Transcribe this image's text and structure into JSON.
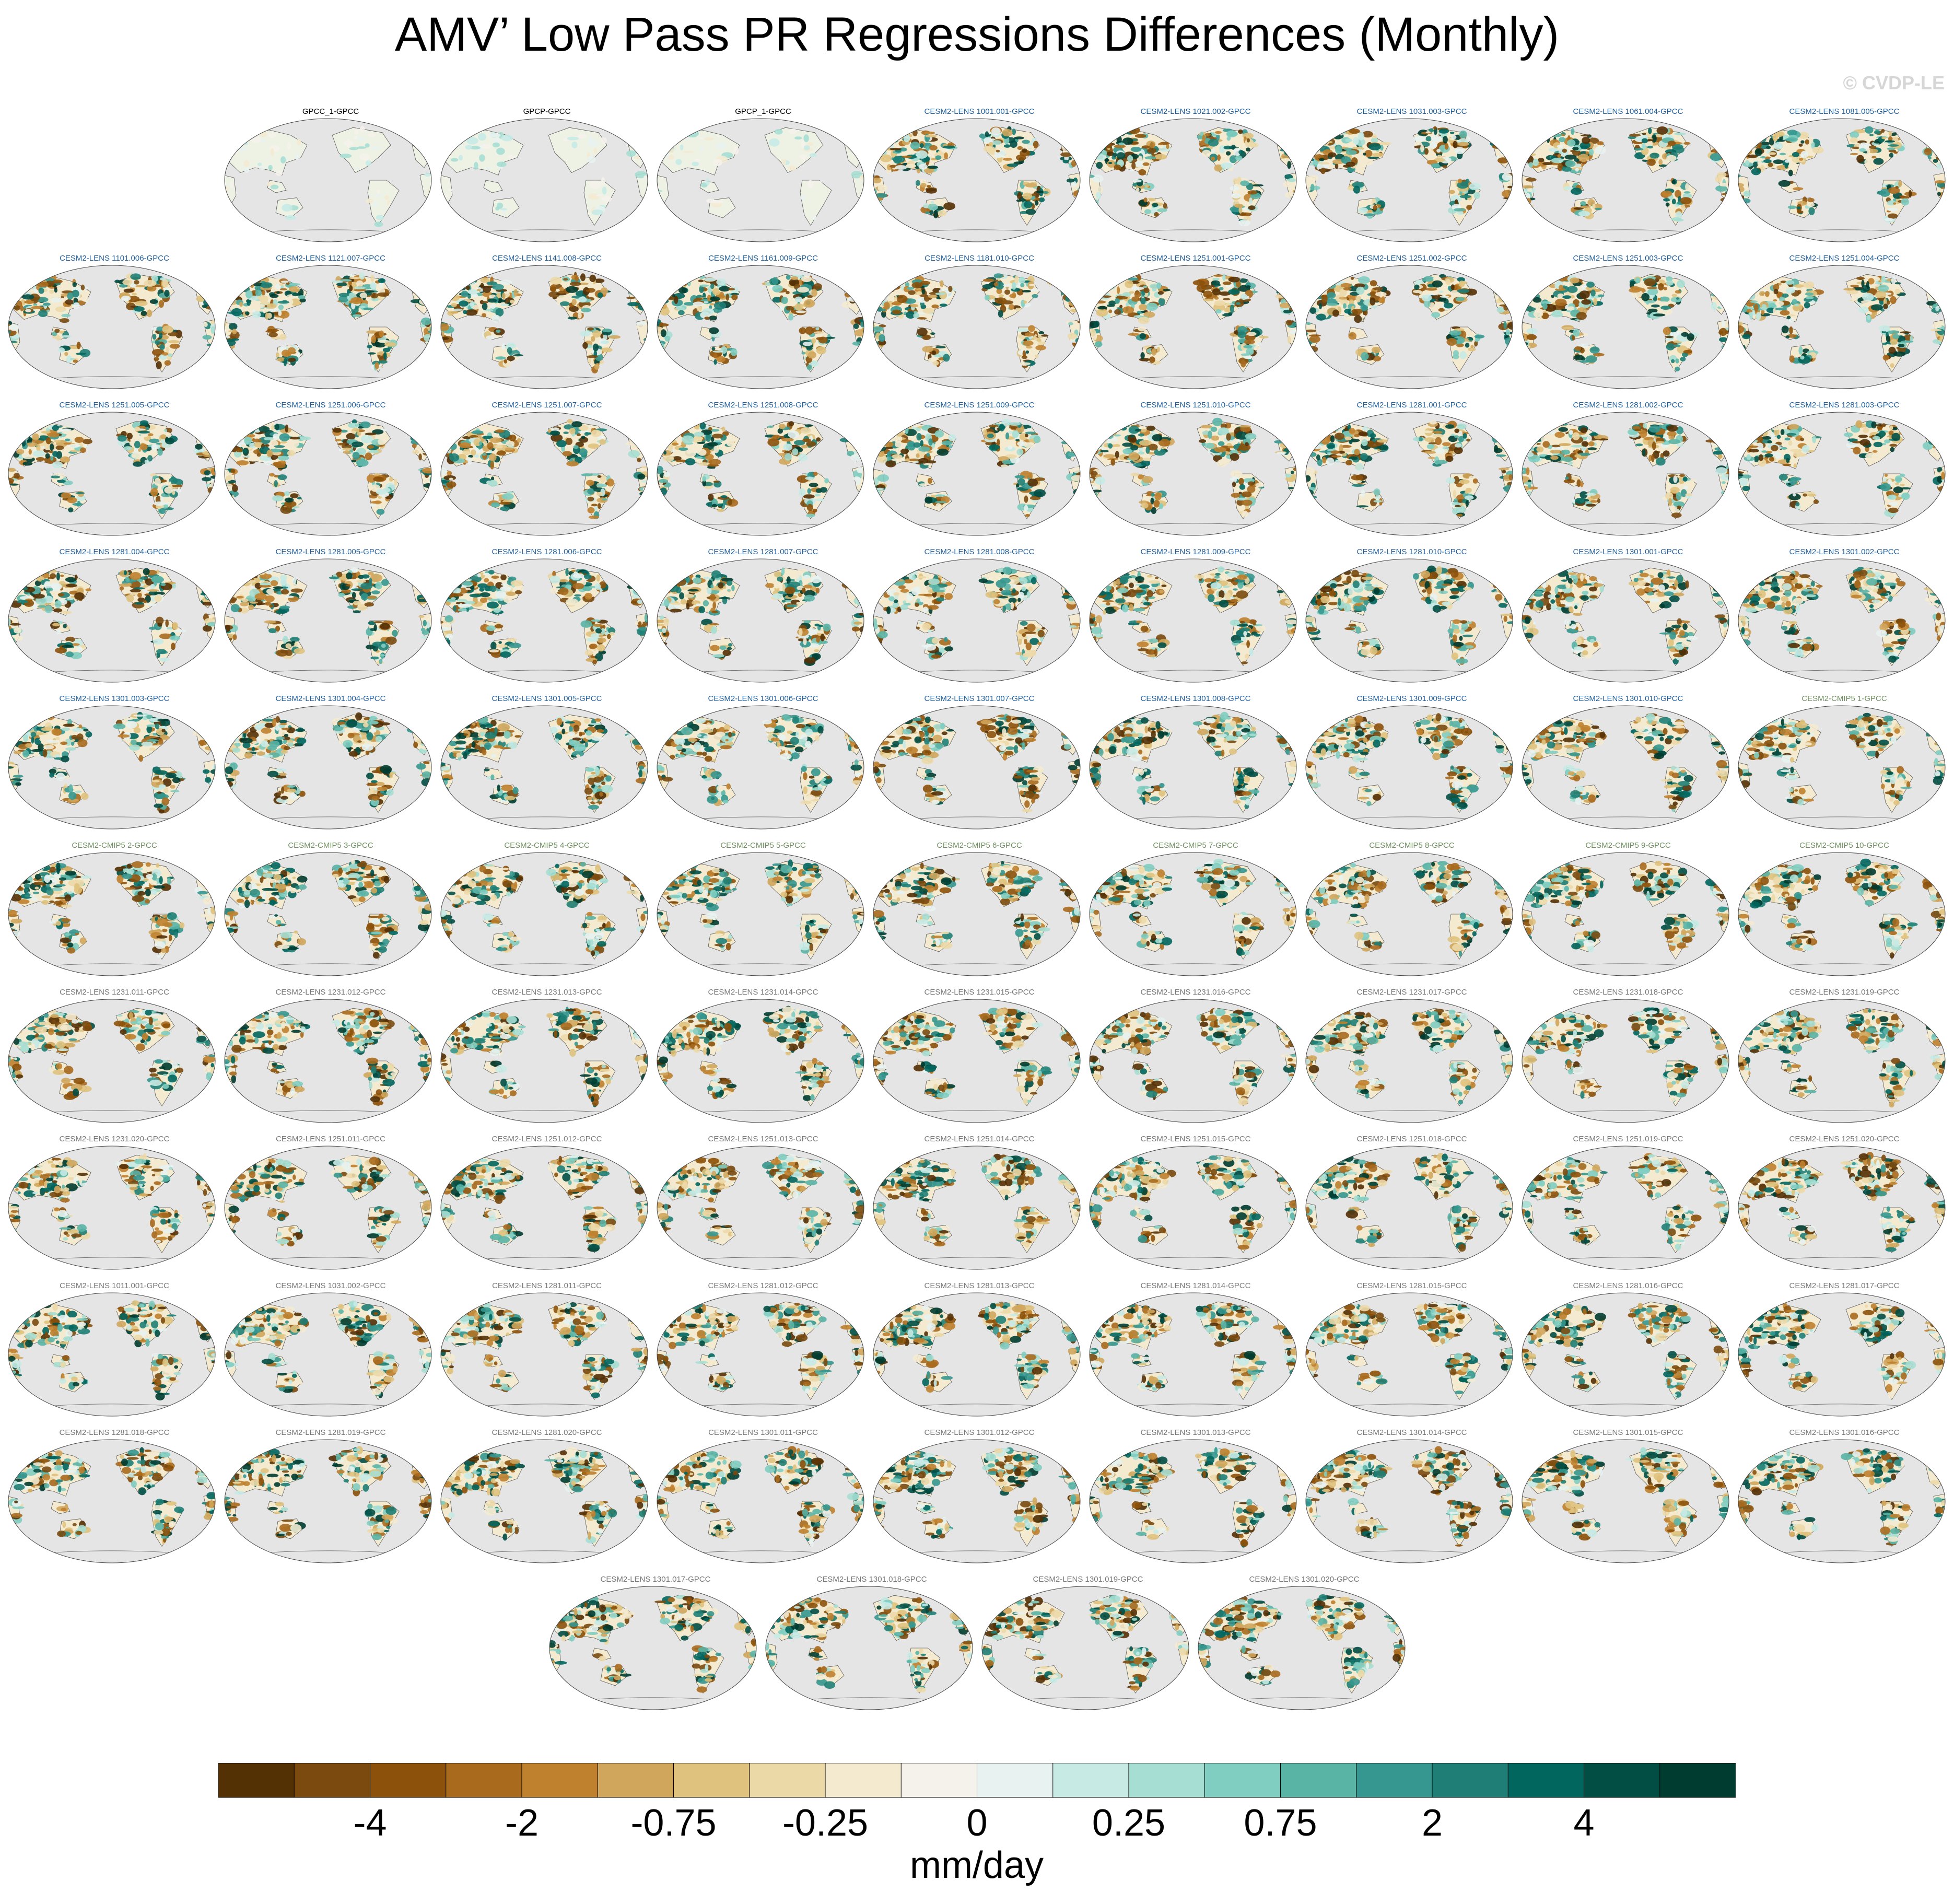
{
  "title": "AMV’ Low Pass PR Regressions Differences (Monthly)",
  "watermark": "© CVDP-LE",
  "panels": [
    {
      "title": "GPCC_1-GPCC",
      "color": "#000000",
      "style": "obs"
    },
    {
      "title": "GPCP-GPCC",
      "color": "#000000",
      "style": "obs"
    },
    {
      "title": "GPCP_1-GPCC",
      "color": "#000000",
      "style": "obs"
    },
    {
      "title": "CESM2-LENS 1001.001-GPCC",
      "color": "#1f5f9e",
      "style": "model"
    },
    {
      "title": "CESM2-LENS 1021.002-GPCC",
      "color": "#1f5f9e",
      "style": "model"
    },
    {
      "title": "CESM2-LENS 1031.003-GPCC",
      "color": "#1f5f9e",
      "style": "model"
    },
    {
      "title": "CESM2-LENS 1061.004-GPCC",
      "color": "#1f5f9e",
      "style": "model"
    },
    {
      "title": "CESM2-LENS 1081.005-GPCC",
      "color": "#1f5f9e",
      "style": "model"
    },
    {
      "title": "CESM2-LENS 1101.006-GPCC",
      "color": "#1f5f9e",
      "style": "model"
    },
    {
      "title": "CESM2-LENS 1121.007-GPCC",
      "color": "#1f5f9e",
      "style": "model"
    },
    {
      "title": "CESM2-LENS 1141.008-GPCC",
      "color": "#1f5f9e",
      "style": "model"
    },
    {
      "title": "CESM2-LENS 1161.009-GPCC",
      "color": "#1f5f9e",
      "style": "model"
    },
    {
      "title": "CESM2-LENS 1181.010-GPCC",
      "color": "#1f5f9e",
      "style": "model"
    },
    {
      "title": "CESM2-LENS 1251.001-GPCC",
      "color": "#1f5f9e",
      "style": "model"
    },
    {
      "title": "CESM2-LENS 1251.002-GPCC",
      "color": "#1f5f9e",
      "style": "model"
    },
    {
      "title": "CESM2-LENS 1251.003-GPCC",
      "color": "#1f5f9e",
      "style": "model"
    },
    {
      "title": "CESM2-LENS 1251.004-GPCC",
      "color": "#1f5f9e",
      "style": "model"
    },
    {
      "title": "CESM2-LENS 1251.005-GPCC",
      "color": "#1f5f9e",
      "style": "model"
    },
    {
      "title": "CESM2-LENS 1251.006-GPCC",
      "color": "#1f5f9e",
      "style": "model"
    },
    {
      "title": "CESM2-LENS 1251.007-GPCC",
      "color": "#1f5f9e",
      "style": "model"
    },
    {
      "title": "CESM2-LENS 1251.008-GPCC",
      "color": "#1f5f9e",
      "style": "model"
    },
    {
      "title": "CESM2-LENS 1251.009-GPCC",
      "color": "#1f5f9e",
      "style": "model"
    },
    {
      "title": "CESM2-LENS 1251.010-GPCC",
      "color": "#1f5f9e",
      "style": "model"
    },
    {
      "title": "CESM2-LENS 1281.001-GPCC",
      "color": "#1f5f9e",
      "style": "model"
    },
    {
      "title": "CESM2-LENS 1281.002-GPCC",
      "color": "#1f5f9e",
      "style": "model"
    },
    {
      "title": "CESM2-LENS 1281.003-GPCC",
      "color": "#1f5f9e",
      "style": "model"
    },
    {
      "title": "CESM2-LENS 1281.004-GPCC",
      "color": "#1f5f9e",
      "style": "model"
    },
    {
      "title": "CESM2-LENS 1281.005-GPCC",
      "color": "#1f5f9e",
      "style": "model"
    },
    {
      "title": "CESM2-LENS 1281.006-GPCC",
      "color": "#1f5f9e",
      "style": "model"
    },
    {
      "title": "CESM2-LENS 1281.007-GPCC",
      "color": "#1f5f9e",
      "style": "model"
    },
    {
      "title": "CESM2-LENS 1281.008-GPCC",
      "color": "#1f5f9e",
      "style": "model"
    },
    {
      "title": "CESM2-LENS 1281.009-GPCC",
      "color": "#1f5f9e",
      "style": "model"
    },
    {
      "title": "CESM2-LENS 1281.010-GPCC",
      "color": "#1f5f9e",
      "style": "model"
    },
    {
      "title": "CESM2-LENS 1301.001-GPCC",
      "color": "#1f5f9e",
      "style": "model"
    },
    {
      "title": "CESM2-LENS 1301.002-GPCC",
      "color": "#1f5f9e",
      "style": "model"
    },
    {
      "title": "CESM2-LENS 1301.003-GPCC",
      "color": "#1f5f9e",
      "style": "model"
    },
    {
      "title": "CESM2-LENS 1301.004-GPCC",
      "color": "#1f5f9e",
      "style": "model"
    },
    {
      "title": "CESM2-LENS 1301.005-GPCC",
      "color": "#1f5f9e",
      "style": "model"
    },
    {
      "title": "CESM2-LENS 1301.006-GPCC",
      "color": "#1f5f9e",
      "style": "model"
    },
    {
      "title": "CESM2-LENS 1301.007-GPCC",
      "color": "#1f5f9e",
      "style": "model"
    },
    {
      "title": "CESM2-LENS 1301.008-GPCC",
      "color": "#1f5f9e",
      "style": "model"
    },
    {
      "title": "CESM2-LENS 1301.009-GPCC",
      "color": "#1f5f9e",
      "style": "model"
    },
    {
      "title": "CESM2-LENS 1301.010-GPCC",
      "color": "#1f5f9e",
      "style": "model"
    },
    {
      "title": "CESM2-CMIP5 1-GPCC",
      "color": "#6f8f5f",
      "style": "model"
    },
    {
      "title": "CESM2-CMIP5 2-GPCC",
      "color": "#6f8f5f",
      "style": "model"
    },
    {
      "title": "CESM2-CMIP5 3-GPCC",
      "color": "#6f8f5f",
      "style": "model"
    },
    {
      "title": "CESM2-CMIP5 4-GPCC",
      "color": "#6f8f5f",
      "style": "model"
    },
    {
      "title": "CESM2-CMIP5 5-GPCC",
      "color": "#6f8f5f",
      "style": "model"
    },
    {
      "title": "CESM2-CMIP5 6-GPCC",
      "color": "#6f8f5f",
      "style": "model"
    },
    {
      "title": "CESM2-CMIP5 7-GPCC",
      "color": "#6f8f5f",
      "style": "model"
    },
    {
      "title": "CESM2-CMIP5 8-GPCC",
      "color": "#6f8f5f",
      "style": "model"
    },
    {
      "title": "CESM2-CMIP5 9-GPCC",
      "color": "#6f8f5f",
      "style": "model"
    },
    {
      "title": "CESM2-CMIP5 10-GPCC",
      "color": "#6f8f5f",
      "style": "model"
    },
    {
      "title": "CESM2-LENS 1231.011-GPCC",
      "color": "#777777",
      "style": "model"
    },
    {
      "title": "CESM2-LENS 1231.012-GPCC",
      "color": "#777777",
      "style": "model"
    },
    {
      "title": "CESM2-LENS 1231.013-GPCC",
      "color": "#777777",
      "style": "model"
    },
    {
      "title": "CESM2-LENS 1231.014-GPCC",
      "color": "#777777",
      "style": "model"
    },
    {
      "title": "CESM2-LENS 1231.015-GPCC",
      "color": "#777777",
      "style": "model"
    },
    {
      "title": "CESM2-LENS 1231.016-GPCC",
      "color": "#777777",
      "style": "model"
    },
    {
      "title": "CESM2-LENS 1231.017-GPCC",
      "color": "#777777",
      "style": "model"
    },
    {
      "title": "CESM2-LENS 1231.018-GPCC",
      "color": "#777777",
      "style": "model"
    },
    {
      "title": "CESM2-LENS 1231.019-GPCC",
      "color": "#777777",
      "style": "model"
    },
    {
      "title": "CESM2-LENS 1231.020-GPCC",
      "color": "#777777",
      "style": "model"
    },
    {
      "title": "CESM2-LENS 1251.011-GPCC",
      "color": "#777777",
      "style": "model"
    },
    {
      "title": "CESM2-LENS 1251.012-GPCC",
      "color": "#777777",
      "style": "model"
    },
    {
      "title": "CESM2-LENS 1251.013-GPCC",
      "color": "#777777",
      "style": "model"
    },
    {
      "title": "CESM2-LENS 1251.014-GPCC",
      "color": "#777777",
      "style": "model"
    },
    {
      "title": "CESM2-LENS 1251.015-GPCC",
      "color": "#777777",
      "style": "model"
    },
    {
      "title": "CESM2-LENS 1251.018-GPCC",
      "color": "#777777",
      "style": "model"
    },
    {
      "title": "CESM2-LENS 1251.019-GPCC",
      "color": "#777777",
      "style": "model"
    },
    {
      "title": "CESM2-LENS 1251.020-GPCC",
      "color": "#777777",
      "style": "model"
    },
    {
      "title": "CESM2-LENS 1011.001-GPCC",
      "color": "#777777",
      "style": "model"
    },
    {
      "title": "CESM2-LENS 1031.002-GPCC",
      "color": "#777777",
      "style": "model"
    },
    {
      "title": "CESM2-LENS 1281.011-GPCC",
      "color": "#777777",
      "style": "model"
    },
    {
      "title": "CESM2-LENS 1281.012-GPCC",
      "color": "#777777",
      "style": "model"
    },
    {
      "title": "CESM2-LENS 1281.013-GPCC",
      "color": "#777777",
      "style": "model"
    },
    {
      "title": "CESM2-LENS 1281.014-GPCC",
      "color": "#777777",
      "style": "model"
    },
    {
      "title": "CESM2-LENS 1281.015-GPCC",
      "color": "#777777",
      "style": "model"
    },
    {
      "title": "CESM2-LENS 1281.016-GPCC",
      "color": "#777777",
      "style": "model"
    },
    {
      "title": "CESM2-LENS 1281.017-GPCC",
      "color": "#777777",
      "style": "model"
    },
    {
      "title": "CESM2-LENS 1281.018-GPCC",
      "color": "#777777",
      "style": "model"
    },
    {
      "title": "CESM2-LENS 1281.019-GPCC",
      "color": "#777777",
      "style": "model"
    },
    {
      "title": "CESM2-LENS 1281.020-GPCC",
      "color": "#777777",
      "style": "model"
    },
    {
      "title": "CESM2-LENS 1301.011-GPCC",
      "color": "#777777",
      "style": "model"
    },
    {
      "title": "CESM2-LENS 1301.012-GPCC",
      "color": "#777777",
      "style": "model"
    },
    {
      "title": "CESM2-LENS 1301.013-GPCC",
      "color": "#777777",
      "style": "model"
    },
    {
      "title": "CESM2-LENS 1301.014-GPCC",
      "color": "#777777",
      "style": "model"
    },
    {
      "title": "CESM2-LENS 1301.015-GPCC",
      "color": "#777777",
      "style": "model"
    },
    {
      "title": "CESM2-LENS 1301.016-GPCC",
      "color": "#777777",
      "style": "model"
    },
    {
      "title": "CESM2-LENS 1301.017-GPCC",
      "color": "#777777",
      "style": "model"
    },
    {
      "title": "CESM2-LENS 1301.018-GPCC",
      "color": "#777777",
      "style": "model"
    },
    {
      "title": "CESM2-LENS 1301.019-GPCC",
      "color": "#777777",
      "style": "model"
    },
    {
      "title": "CESM2-LENS 1301.020-GPCC",
      "color": "#777777",
      "style": "model"
    }
  ],
  "colorbar": {
    "colors": [
      "#543005",
      "#7a4a0f",
      "#8c510a",
      "#a96a1e",
      "#bf812d",
      "#d0a65c",
      "#dfc27d",
      "#ecd9a8",
      "#f3ead0",
      "#f5f2ec",
      "#e8f2f0",
      "#c7eae5",
      "#a6ded3",
      "#80cdc1",
      "#5ab4a6",
      "#35978f",
      "#1f7f76",
      "#01665e",
      "#024e44",
      "#003c30"
    ],
    "tick_labels": [
      "-4",
      "-2",
      "-0.75",
      "-0.25",
      "0",
      "0.25",
      "0.75",
      "2",
      "4"
    ],
    "units": "mm/day"
  }
}
